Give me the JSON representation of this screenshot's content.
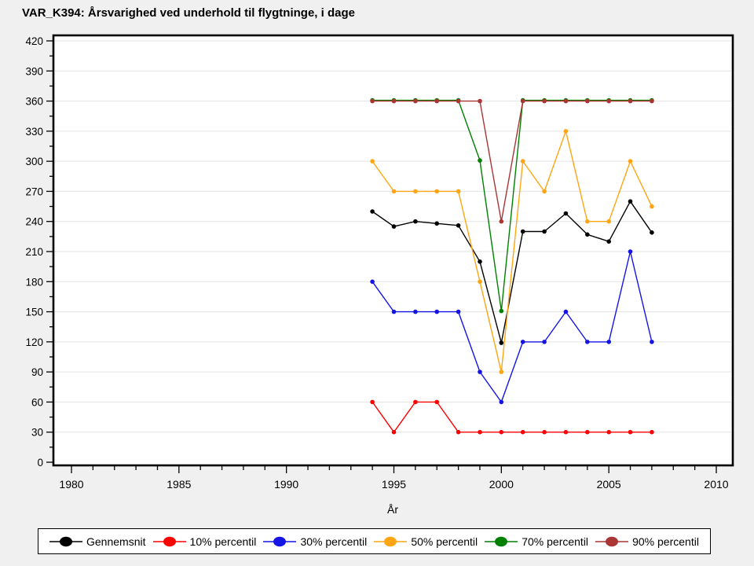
{
  "title": "VAR_K394: Årsvarighed ved underhold til flygtninge, i dage",
  "chart_data": {
    "type": "line",
    "title": "VAR_K394: Årsvarighed ved underhold til flygtninge, i dage",
    "xlabel": "År",
    "ylabel": "",
    "x": [
      1994,
      1995,
      1996,
      1997,
      1998,
      1999,
      2000,
      2001,
      2002,
      2003,
      2004,
      2005,
      2006,
      2007
    ],
    "series": [
      {
        "name": "Gennemsnit",
        "color": "#000000",
        "values": [
          250,
          235,
          240,
          238,
          236,
          200,
          119,
          230,
          230,
          248,
          227,
          220,
          260,
          229
        ]
      },
      {
        "name": "10% percentil",
        "color": "#ff0000",
        "values": [
          60,
          30,
          60,
          60,
          30,
          30,
          30,
          30,
          30,
          30,
          30,
          30,
          30,
          30
        ]
      },
      {
        "name": "30% percentil",
        "color": "#1414e6",
        "values": [
          180,
          150,
          150,
          150,
          150,
          90,
          60,
          120,
          120,
          150,
          120,
          120,
          210,
          120
        ]
      },
      {
        "name": "50% percentil",
        "color": "#ffa513",
        "values": [
          300,
          270,
          270,
          270,
          270,
          180,
          90,
          300,
          270,
          330,
          240,
          240,
          300,
          255
        ]
      },
      {
        "name": "70% percentil",
        "color": "#008000",
        "values": [
          360,
          360,
          360,
          360,
          360,
          300,
          150,
          360,
          360,
          360,
          360,
          360,
          360,
          360
        ]
      },
      {
        "name": "90% percentil",
        "color": "#a93535",
        "values": [
          360,
          360,
          360,
          360,
          360,
          360,
          240,
          360,
          360,
          360,
          360,
          360,
          360,
          360
        ]
      }
    ],
    "x_axis": {
      "range_years": [
        1979.2,
        2010.8
      ],
      "major_tick_labels": [
        "1980",
        "1985",
        "1990",
        "1995",
        "2000",
        "2005",
        "2010"
      ],
      "major_tick_years": [
        1980,
        1985,
        1990,
        1995,
        2000,
        2005,
        2010
      ],
      "minor_tick_step": 1
    },
    "y_axis": {
      "min": 0,
      "max": 420,
      "major_tick_labels": [
        "0",
        "30",
        "60",
        "90",
        "120",
        "150",
        "180",
        "210",
        "240",
        "270",
        "300",
        "330",
        "360",
        "390",
        "420"
      ],
      "major_step": 30,
      "minor_step": 15
    },
    "grid": "horizontal-major",
    "legend_position": "bottom"
  },
  "colors": {
    "background": "#f0f0f0",
    "plot_background": "#ffffff",
    "gridline": "#e3e3e3",
    "axis": "#000000"
  }
}
